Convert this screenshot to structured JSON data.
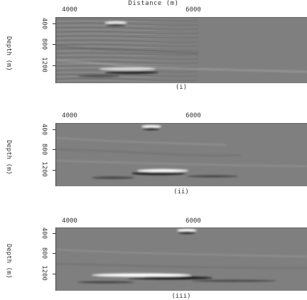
{
  "figure": {
    "title": "Distance (m)",
    "x_ticks": [
      "4000",
      "6000"
    ],
    "y_ticks": [
      "400",
      "800",
      "1200"
    ],
    "y_label": "Depth (m)",
    "panels": [
      {
        "caption": "(i)"
      },
      {
        "caption": "(ii)"
      },
      {
        "caption": "(iii)"
      }
    ],
    "colors": {
      "background": "#7f7f7f",
      "bright": "#ffffff",
      "dark": "#000000"
    }
  }
}
